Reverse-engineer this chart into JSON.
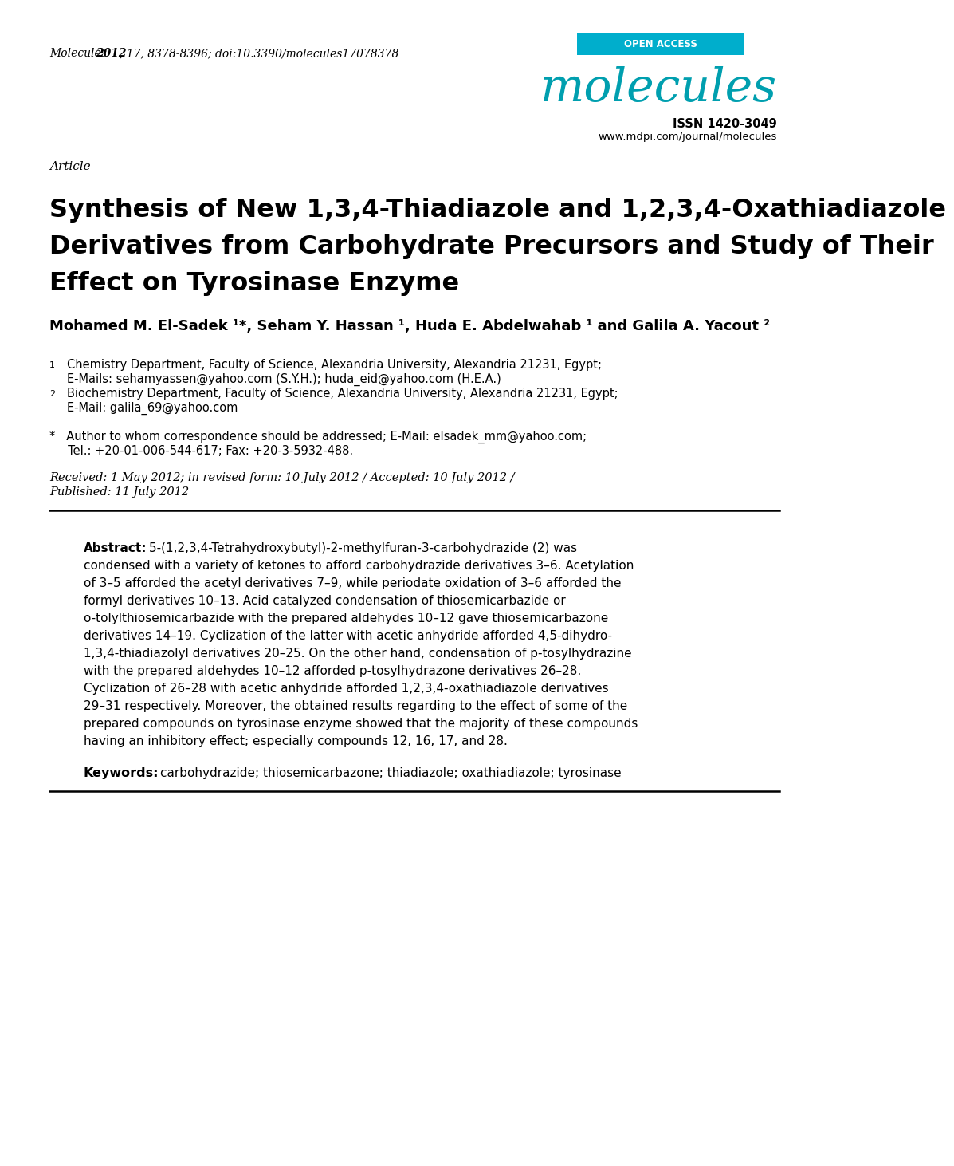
{
  "bg_color": "#ffffff",
  "open_access_bg": "#00AECC",
  "open_access_text": "OPEN ACCESS",
  "journal_name": "molecules",
  "journal_color": "#009FAF",
  "issn_text": "ISSN 1420-3049",
  "website_text": "www.mdpi.com/journal/molecules",
  "article_label": "Article",
  "title_line1": "Synthesis of New 1,3,4-Thiadiazole and 1,2,3,4-Oxathiadiazole",
  "title_line2": "Derivatives from Carbohydrate Precursors and Study of Their",
  "title_line3": "Effect on Tyrosinase Enzyme",
  "authors": "Mohamed M. El-Sadek ¹*, Seham Y. Hassan ¹, Huda E. Abdelwahab ¹ and Galila A. Yacout ²",
  "affil1_sup": "1",
  "affil1_line1": "Chemistry Department, Faculty of Science, Alexandria University, Alexandria 21231, Egypt;",
  "affil1_line2": "E-Mails: sehamyassen@yahoo.com (S.Y.H.); huda_eid@yahoo.com (H.E.A.)",
  "affil2_sup": "2",
  "affil2_line1": "Biochemistry Department, Faculty of Science, Alexandria University, Alexandria 21231, Egypt;",
  "affil2_line2": "E-Mail: galila_69@yahoo.com",
  "corr_line1": "*   Author to whom correspondence should be addressed; E-Mail: elsadek_mm@yahoo.com;",
  "corr_line2": "     Tel.: +20-01-006-544-617; Fax: +20-3-5932-488.",
  "received": "Received: 1 May 2012; in revised form: 10 July 2012 / Accepted: 10 July 2012 /",
  "published": "Published: 11 July 2012",
  "abstract_label": "Abstract:",
  "abstract_lines": [
    "5-(1,2,3,4-Tetrahydroxybutyl)-2-methylfuran-3-carbohydrazide (2) was",
    "condensed with a variety of ketones to afford carbohydrazide derivatives 3–6. Acetylation",
    "of 3–5 afforded the acetyl derivatives 7–9, while periodate oxidation of 3–6 afforded the",
    "formyl derivatives 10–13. Acid catalyzed condensation of thiosemicarbazide or",
    "o-tolylthiosemicarbazide with the prepared aldehydes 10–12 gave thiosemicarbazone",
    "derivatives 14–19. Cyclization of the latter with acetic anhydride afforded 4,5-dihydro-",
    "1,3,4-thiadiazolyl derivatives 20–25. On the other hand, condensation of p-tosylhydrazine",
    "with the prepared aldehydes 10–12 afforded p-tosylhydrazone derivatives 26–28.",
    "Cyclization of 26–28 with acetic anhydride afforded 1,2,3,4-oxathiadiazole derivatives",
    "29–31 respectively. Moreover, the obtained results regarding to the effect of some of the",
    "prepared compounds on tyrosinase enzyme showed that the majority of these compounds",
    "having an inhibitory effect; especially compounds 12, 16, 17, and 28."
  ],
  "abstract_bold_words": [
    "3–6",
    "3–5",
    "7–9",
    "3–6",
    "10–13",
    "10–12",
    "14–19",
    "20–25",
    "10–12",
    "26–28",
    "26–28",
    "29–31",
    "12",
    "16",
    "17",
    "28"
  ],
  "keywords_label": "Keywords:",
  "keywords_body": "carbohydrazide; thiosemicarbazone; thiadiazole; oxathiadiazole; tyrosinase",
  "header_molecules": "Molecules",
  "header_year": "2012",
  "header_rest": ", 17, 8378-8396; doi:10.3390/molecules17078378"
}
